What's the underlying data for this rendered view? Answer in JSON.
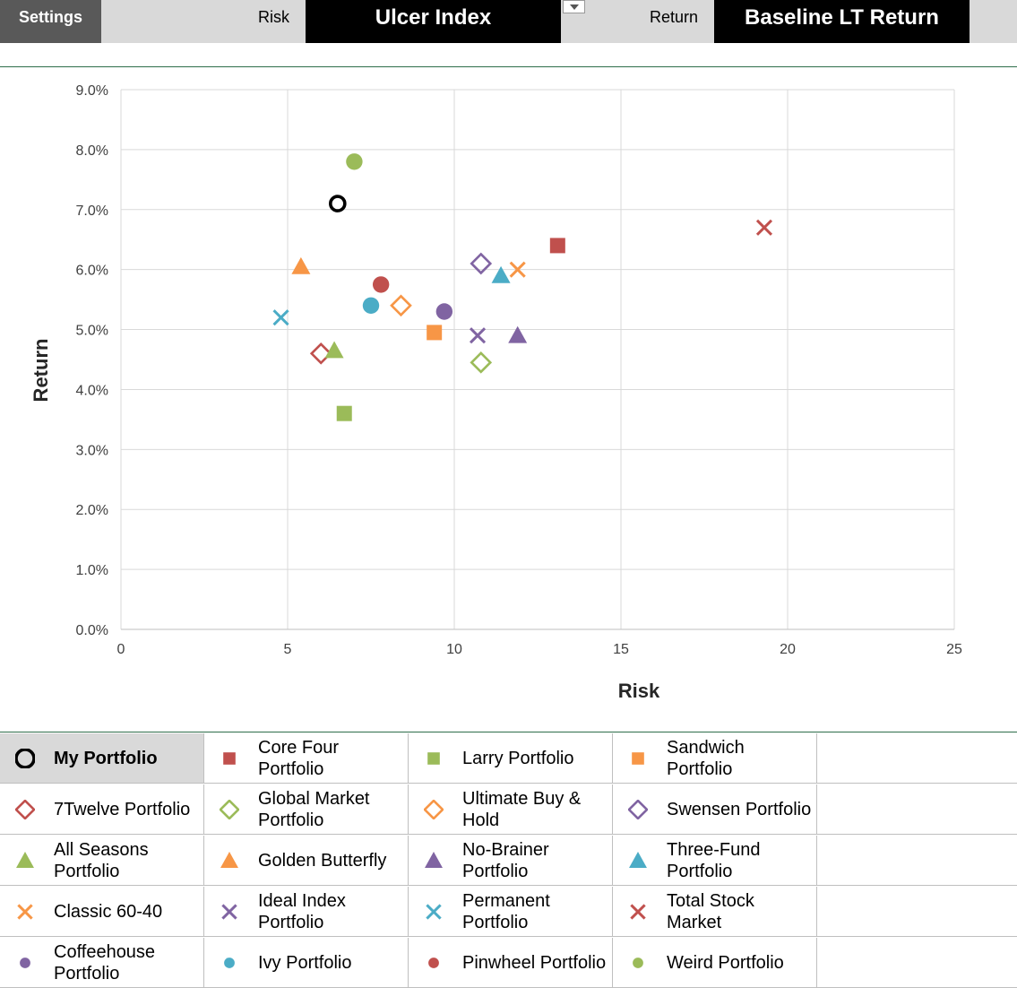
{
  "toolbar": {
    "settings_label": "Settings",
    "risk_label": "Risk",
    "risk_value": "Ulcer Index",
    "return_label": "Return",
    "return_value": "Baseline LT Return"
  },
  "colors": {
    "selected_cell_bg": "#d9d9d9",
    "dropdown_bg": "#000000",
    "chart_border": "#2e6e4b"
  },
  "chart_data": {
    "type": "scatter",
    "xlabel": "Risk",
    "ylabel": "Return",
    "xlim": [
      0,
      25
    ],
    "ylim": [
      0,
      9
    ],
    "x_ticks": [
      "0",
      "5",
      "10",
      "15",
      "20",
      "25"
    ],
    "y_ticks": [
      "0.0%",
      "1.0%",
      "2.0%",
      "3.0%",
      "4.0%",
      "5.0%",
      "6.0%",
      "7.0%",
      "8.0%",
      "9.0%"
    ],
    "grid": true,
    "series": [
      {
        "name": "My Portfolio",
        "marker": "circle-open-thick",
        "color": "#000000",
        "x": 6.5,
        "y": 7.1
      },
      {
        "name": "Core Four Portfolio",
        "marker": "square",
        "color": "#c0504d",
        "x": 13.1,
        "y": 6.4
      },
      {
        "name": "Larry Portfolio",
        "marker": "square",
        "color": "#9bbb59",
        "x": 6.7,
        "y": 3.6
      },
      {
        "name": "Sandwich Portfolio",
        "marker": "square",
        "color": "#f79646",
        "x": 9.4,
        "y": 4.95
      },
      {
        "name": "7Twelve Portfolio",
        "marker": "diamond-open",
        "color": "#c0504d",
        "x": 6.0,
        "y": 4.6
      },
      {
        "name": "Global Market Portfolio",
        "marker": "diamond-open",
        "color": "#9bbb59",
        "x": 10.8,
        "y": 4.45
      },
      {
        "name": "Ultimate Buy & Hold",
        "marker": "diamond-open",
        "color": "#f79646",
        "x": 8.4,
        "y": 5.4
      },
      {
        "name": "Swensen Portfolio",
        "marker": "diamond-open",
        "color": "#8064a2",
        "x": 10.8,
        "y": 6.1
      },
      {
        "name": "All Seasons Portfolio",
        "marker": "triangle",
        "color": "#9bbb59",
        "x": 6.4,
        "y": 4.65
      },
      {
        "name": "Golden Butterfly",
        "marker": "triangle",
        "color": "#f79646",
        "x": 5.4,
        "y": 6.05
      },
      {
        "name": "No-Brainer Portfolio",
        "marker": "triangle",
        "color": "#8064a2",
        "x": 11.9,
        "y": 4.9
      },
      {
        "name": "Three-Fund Portfolio",
        "marker": "triangle",
        "color": "#4bacc6",
        "x": 11.4,
        "y": 5.9
      },
      {
        "name": "Classic 60-40",
        "marker": "x",
        "color": "#f79646",
        "x": 11.9,
        "y": 6.0
      },
      {
        "name": "Ideal Index Portfolio",
        "marker": "x",
        "color": "#8064a2",
        "x": 10.7,
        "y": 4.9
      },
      {
        "name": "Permanent Portfolio",
        "marker": "x",
        "color": "#4bacc6",
        "x": 4.8,
        "y": 5.2
      },
      {
        "name": "Total Stock Market",
        "marker": "x",
        "color": "#c0504d",
        "x": 19.3,
        "y": 6.7
      },
      {
        "name": "Coffeehouse Portfolio",
        "marker": "circle",
        "color": "#8064a2",
        "x": 9.7,
        "y": 5.3
      },
      {
        "name": "Ivy Portfolio",
        "marker": "circle",
        "color": "#4bacc6",
        "x": 7.5,
        "y": 5.4
      },
      {
        "name": "Pinwheel Portfolio",
        "marker": "circle",
        "color": "#c0504d",
        "x": 7.8,
        "y": 5.75
      },
      {
        "name": "Weird Portfolio",
        "marker": "circle",
        "color": "#9bbb59",
        "x": 7.0,
        "y": 7.8
      }
    ]
  },
  "legend": {
    "selected": "My Portfolio",
    "columns": 4,
    "items": [
      {
        "label": "My Portfolio",
        "marker": "circle-open-thick",
        "color": "#000000",
        "icon": "open-circle-icon"
      },
      {
        "label": "Core Four\nPortfolio",
        "marker": "square",
        "color": "#c0504d",
        "icon": "square-icon"
      },
      {
        "label": "Larry Portfolio",
        "marker": "square",
        "color": "#9bbb59",
        "icon": "square-icon"
      },
      {
        "label": "Sandwich\nPortfolio",
        "marker": "square",
        "color": "#f79646",
        "icon": "square-icon"
      },
      {
        "label": "7Twelve Portfolio",
        "marker": "diamond-open",
        "color": "#c0504d",
        "icon": "diamond-icon"
      },
      {
        "label": "Global Market\nPortfolio",
        "marker": "diamond-open",
        "color": "#9bbb59",
        "icon": "diamond-icon"
      },
      {
        "label": "Ultimate Buy &\nHold",
        "marker": "diamond-open",
        "color": "#f79646",
        "icon": "diamond-icon"
      },
      {
        "label": "Swensen Portfolio",
        "marker": "diamond-open",
        "color": "#8064a2",
        "icon": "diamond-icon"
      },
      {
        "label": "All Seasons\nPortfolio",
        "marker": "triangle",
        "color": "#9bbb59",
        "icon": "triangle-icon"
      },
      {
        "label": "Golden Butterfly",
        "marker": "triangle",
        "color": "#f79646",
        "icon": "triangle-icon"
      },
      {
        "label": "No-Brainer\nPortfolio",
        "marker": "triangle",
        "color": "#8064a2",
        "icon": "triangle-icon"
      },
      {
        "label": "Three-Fund\nPortfolio",
        "marker": "triangle",
        "color": "#4bacc6",
        "icon": "triangle-icon"
      },
      {
        "label": "Classic 60-40",
        "marker": "x",
        "color": "#f79646",
        "icon": "x-mark-icon"
      },
      {
        "label": "Ideal Index\nPortfolio",
        "marker": "x",
        "color": "#8064a2",
        "icon": "x-mark-icon"
      },
      {
        "label": "Permanent\nPortfolio",
        "marker": "x",
        "color": "#4bacc6",
        "icon": "x-mark-icon"
      },
      {
        "label": "Total Stock\nMarket",
        "marker": "x",
        "color": "#c0504d",
        "icon": "x-mark-icon"
      },
      {
        "label": "Coffeehouse\nPortfolio",
        "marker": "circle-small",
        "color": "#8064a2",
        "icon": "dot-icon"
      },
      {
        "label": "Ivy Portfolio",
        "marker": "circle-small",
        "color": "#4bacc6",
        "icon": "dot-icon"
      },
      {
        "label": "Pinwheel Portfolio",
        "marker": "circle-small",
        "color": "#c0504d",
        "icon": "dot-icon"
      },
      {
        "label": "Weird Portfolio",
        "marker": "circle-small",
        "color": "#9bbb59",
        "icon": "dot-icon"
      }
    ]
  }
}
